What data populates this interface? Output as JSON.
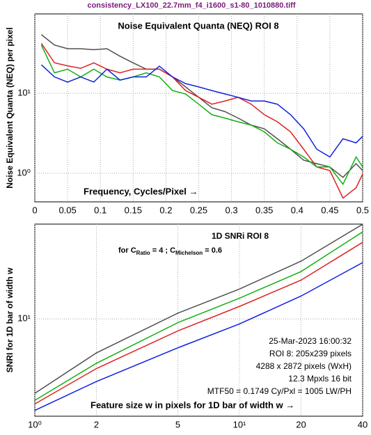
{
  "chart_data": [
    {
      "type": "line",
      "suptitle": "consistency_LX100_22.7mm_f4_i1600_s1-80_1010880.tiff",
      "title": "Noise Equivalent Quanta (NEQ)  ROI 8",
      "x_label": "Frequency, Cycles/Pixel →",
      "y_label": "Noise Equivalent Quanta (NEQ) per pixel",
      "x": [
        0.01,
        0.03,
        0.05,
        0.07,
        0.09,
        0.11,
        0.13,
        0.15,
        0.17,
        0.19,
        0.21,
        0.23,
        0.25,
        0.27,
        0.29,
        0.31,
        0.33,
        0.35,
        0.37,
        0.39,
        0.41,
        0.43,
        0.45,
        0.47,
        0.49,
        0.5
      ],
      "series": [
        {
          "color": "#505050",
          "values": [
            54,
            40,
            36,
            36,
            35,
            36,
            29,
            24,
            20,
            20,
            16,
            12,
            8.9,
            6.6,
            5.9,
            4.9,
            4.0,
            3.6,
            2.7,
            2.0,
            1.46,
            1.32,
            1.2,
            0.89,
            1.32,
            1.08
          ]
        },
        {
          "color": "#e02020",
          "values": [
            42,
            24,
            22,
            20.5,
            24,
            20,
            18,
            20,
            20,
            20,
            16,
            10.8,
            8.9,
            7.3,
            8.0,
            8.9,
            7.3,
            5.4,
            4.4,
            3.3,
            2.0,
            1.2,
            1.08,
            0.49,
            0.66,
            0.98
          ]
        },
        {
          "color": "#10b010",
          "values": [
            40,
            18,
            20,
            16,
            20,
            16,
            14.6,
            16,
            18,
            16,
            10.8,
            9.8,
            7.3,
            5.4,
            4.9,
            4.4,
            4.0,
            3.3,
            2.4,
            2.0,
            1.6,
            1.2,
            1.2,
            0.73,
            1.6,
            1.2
          ]
        },
        {
          "color": "#1020e0",
          "values": [
            22.7,
            16,
            13.8,
            16,
            13.8,
            20,
            14.6,
            16,
            16,
            21.8,
            16,
            13.2,
            12,
            10.8,
            9.8,
            8.9,
            8.0,
            8.0,
            7.3,
            5.4,
            3.6,
            2.0,
            1.6,
            2.7,
            2.4,
            2.9
          ]
        }
      ],
      "xlim": [
        0,
        0.5
      ],
      "xticks": [
        0,
        0.05,
        0.1,
        0.15,
        0.2,
        0.25,
        0.3,
        0.35,
        0.4,
        0.45,
        0.5
      ],
      "ylim": [
        0.44,
        98
      ],
      "yticks": [
        {
          "value": 1,
          "label": "10⁰"
        },
        {
          "value": 10,
          "label": "10¹"
        }
      ],
      "y_log": true,
      "grid": true
    },
    {
      "type": "line",
      "title": "1D SNRi  ROI 8",
      "subtitle": [
        "for C",
        "Ratio",
        " = 4 ;  C",
        "Michelson",
        " = 0.6"
      ],
      "x_label": "Feature size w in pixels for 1D bar of width w  →",
      "y_label": "SNRI for 1D bar of width w",
      "annotations": [
        "25-Mar-2023 16:00:32",
        "ROI 8:  205x239 pixels",
        "4288 x 2872 pixels (WxH)",
        "12.3 Mpxls   16 bit",
        "MTF50 = 0.1749 Cy/Pxl = 1005 LW/PH"
      ],
      "x": [
        1,
        2,
        5,
        10,
        20,
        40
      ],
      "series": [
        {
          "color": "#505050",
          "values": [
            2.92,
            5.7,
            11.0,
            16.4,
            26,
            47.9
          ]
        },
        {
          "color": "#10b010",
          "values": [
            2.6,
            4.8,
            9.4,
            14.1,
            21.9,
            42.2
          ]
        },
        {
          "color": "#e02020",
          "values": [
            2.45,
            4.4,
            8.2,
            12.3,
            19.0,
            35.5
          ]
        },
        {
          "color": "#1020e0",
          "values": [
            2.2,
            3.55,
            6.2,
            9.2,
            14.6,
            25.4
          ]
        }
      ],
      "xlim": [
        1,
        40
      ],
      "xticks": [
        {
          "value": 1,
          "label": "10⁰"
        },
        2,
        5,
        {
          "value": 10,
          "label": "10¹"
        },
        20,
        40
      ],
      "ylim": [
        2.0,
        48
      ],
      "yticks": [
        {
          "value": 10,
          "label": "10¹"
        }
      ],
      "x_log": true,
      "y_log": true,
      "grid": true
    }
  ]
}
